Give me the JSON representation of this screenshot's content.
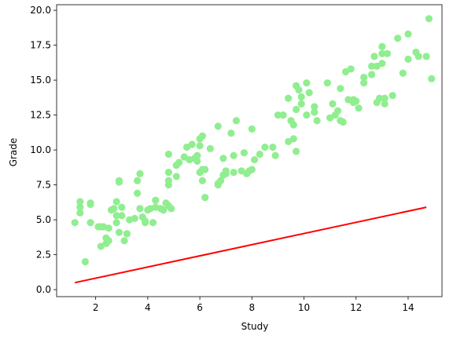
{
  "chart_data": {
    "type": "scatter",
    "title": "",
    "xlabel": "Study",
    "ylabel": "Grade",
    "xlim": [
      0.5,
      15.3
    ],
    "ylim": [
      -0.5,
      20.4
    ],
    "xticks": [
      2,
      4,
      6,
      8,
      10,
      12,
      14
    ],
    "yticks": [
      0.0,
      2.5,
      5.0,
      7.5,
      10.0,
      12.5,
      15.0,
      17.5,
      20.0
    ],
    "ytick_labels": [
      "0.0",
      "2.5",
      "5.0",
      "7.5",
      "10.0",
      "12.5",
      "15.0",
      "17.5",
      "20.0"
    ],
    "grid": false,
    "legend": "none",
    "colors": {
      "points": "#90ee90",
      "line": "#ff0000"
    },
    "series": [
      {
        "kind": "scatter",
        "points": [
          [
            1.2,
            4.8
          ],
          [
            1.4,
            5.5
          ],
          [
            1.4,
            5.9
          ],
          [
            1.4,
            6.3
          ],
          [
            1.6,
            2.0
          ],
          [
            1.8,
            4.8
          ],
          [
            1.8,
            6.2
          ],
          [
            1.8,
            6.1
          ],
          [
            2.1,
            4.5
          ],
          [
            2.2,
            3.1
          ],
          [
            2.2,
            4.5
          ],
          [
            2.3,
            4.5
          ],
          [
            2.4,
            3.7
          ],
          [
            2.4,
            3.3
          ],
          [
            2.5,
            4.4
          ],
          [
            2.5,
            3.5
          ],
          [
            2.6,
            5.7
          ],
          [
            2.7,
            5.8
          ],
          [
            2.8,
            6.3
          ],
          [
            2.8,
            5.3
          ],
          [
            2.8,
            4.8
          ],
          [
            2.9,
            7.8
          ],
          [
            2.9,
            7.7
          ],
          [
            2.9,
            4.1
          ],
          [
            3.0,
            5.9
          ],
          [
            3.0,
            5.3
          ],
          [
            3.1,
            3.5
          ],
          [
            3.2,
            4.0
          ],
          [
            3.2,
            4.0
          ],
          [
            3.3,
            5.0
          ],
          [
            3.5,
            5.1
          ],
          [
            3.6,
            6.9
          ],
          [
            3.6,
            7.8
          ],
          [
            3.7,
            8.3
          ],
          [
            3.7,
            5.8
          ],
          [
            3.8,
            5.2
          ],
          [
            3.9,
            4.9
          ],
          [
            3.9,
            4.8
          ],
          [
            4.0,
            5.7
          ],
          [
            4.1,
            5.8
          ],
          [
            4.2,
            4.8
          ],
          [
            4.3,
            5.9
          ],
          [
            4.3,
            6.4
          ],
          [
            4.5,
            5.8
          ],
          [
            4.6,
            5.7
          ],
          [
            4.7,
            6.2
          ],
          [
            4.8,
            6.0
          ],
          [
            4.8,
            7.5
          ],
          [
            4.8,
            7.8
          ],
          [
            4.8,
            8.4
          ],
          [
            4.8,
            9.7
          ],
          [
            4.9,
            5.8
          ],
          [
            5.1,
            8.9
          ],
          [
            5.1,
            8.1
          ],
          [
            5.2,
            9.1
          ],
          [
            5.4,
            9.5
          ],
          [
            5.5,
            10.2
          ],
          [
            5.6,
            9.3
          ],
          [
            5.7,
            10.4
          ],
          [
            5.8,
            9.4
          ],
          [
            5.9,
            9.2
          ],
          [
            5.9,
            9.6
          ],
          [
            6.0,
            10.3
          ],
          [
            6.0,
            10.8
          ],
          [
            6.0,
            8.4
          ],
          [
            6.1,
            7.8
          ],
          [
            6.1,
            11.0
          ],
          [
            6.1,
            8.6
          ],
          [
            6.2,
            8.6
          ],
          [
            6.2,
            6.6
          ],
          [
            6.4,
            10.1
          ],
          [
            6.7,
            7.5
          ],
          [
            6.7,
            7.6
          ],
          [
            6.7,
            11.7
          ],
          [
            6.8,
            7.8
          ],
          [
            6.9,
            8.2
          ],
          [
            6.9,
            9.4
          ],
          [
            7.0,
            8.3
          ],
          [
            7.0,
            8.5
          ],
          [
            7.2,
            11.2
          ],
          [
            7.3,
            8.4
          ],
          [
            7.3,
            9.6
          ],
          [
            7.4,
            12.1
          ],
          [
            7.6,
            8.5
          ],
          [
            7.7,
            9.8
          ],
          [
            7.8,
            8.3
          ],
          [
            7.9,
            8.5
          ],
          [
            8.0,
            8.6
          ],
          [
            8.0,
            11.5
          ],
          [
            8.1,
            9.3
          ],
          [
            8.3,
            9.7
          ],
          [
            8.5,
            10.2
          ],
          [
            8.8,
            10.2
          ],
          [
            8.9,
            9.6
          ],
          [
            9.0,
            12.5
          ],
          [
            9.2,
            12.5
          ],
          [
            9.4,
            10.6
          ],
          [
            9.4,
            13.7
          ],
          [
            9.5,
            12.1
          ],
          [
            9.6,
            11.8
          ],
          [
            9.6,
            10.8
          ],
          [
            9.7,
            9.9
          ],
          [
            9.7,
            14.6
          ],
          [
            9.7,
            12.9
          ],
          [
            9.8,
            14.3
          ],
          [
            9.9,
            13.3
          ],
          [
            9.9,
            13.8
          ],
          [
            10.1,
            14.8
          ],
          [
            10.1,
            12.5
          ],
          [
            10.2,
            14.1
          ],
          [
            10.4,
            13.1
          ],
          [
            10.4,
            12.7
          ],
          [
            10.5,
            12.1
          ],
          [
            10.9,
            14.8
          ],
          [
            11.0,
            12.3
          ],
          [
            11.1,
            13.3
          ],
          [
            11.2,
            12.5
          ],
          [
            11.3,
            12.8
          ],
          [
            11.4,
            12.1
          ],
          [
            11.4,
            14.4
          ],
          [
            11.5,
            12.0
          ],
          [
            11.6,
            15.6
          ],
          [
            11.7,
            13.6
          ],
          [
            11.8,
            15.8
          ],
          [
            11.9,
            13.4
          ],
          [
            11.9,
            13.6
          ],
          [
            12.0,
            13.5
          ],
          [
            12.1,
            13.0
          ],
          [
            12.3,
            14.8
          ],
          [
            12.3,
            15.2
          ],
          [
            12.6,
            16.0
          ],
          [
            12.6,
            15.4
          ],
          [
            12.7,
            16.7
          ],
          [
            12.8,
            16.0
          ],
          [
            12.8,
            13.4
          ],
          [
            12.9,
            13.7
          ],
          [
            13.0,
            16.2
          ],
          [
            13.0,
            16.9
          ],
          [
            13.0,
            17.4
          ],
          [
            13.1,
            13.3
          ],
          [
            13.1,
            13.7
          ],
          [
            13.2,
            16.9
          ],
          [
            13.4,
            13.9
          ],
          [
            13.6,
            18.0
          ],
          [
            13.8,
            15.5
          ],
          [
            14.0,
            16.5
          ],
          [
            14.0,
            18.3
          ],
          [
            14.3,
            17.0
          ],
          [
            14.4,
            16.7
          ],
          [
            14.7,
            16.7
          ],
          [
            14.8,
            19.4
          ],
          [
            14.9,
            15.1
          ]
        ]
      },
      {
        "kind": "line",
        "x": [
          1.2,
          14.7
        ],
        "y": [
          0.5,
          5.9
        ]
      }
    ]
  },
  "labels": {
    "xlabel": "Study",
    "ylabel": "Grade"
  }
}
